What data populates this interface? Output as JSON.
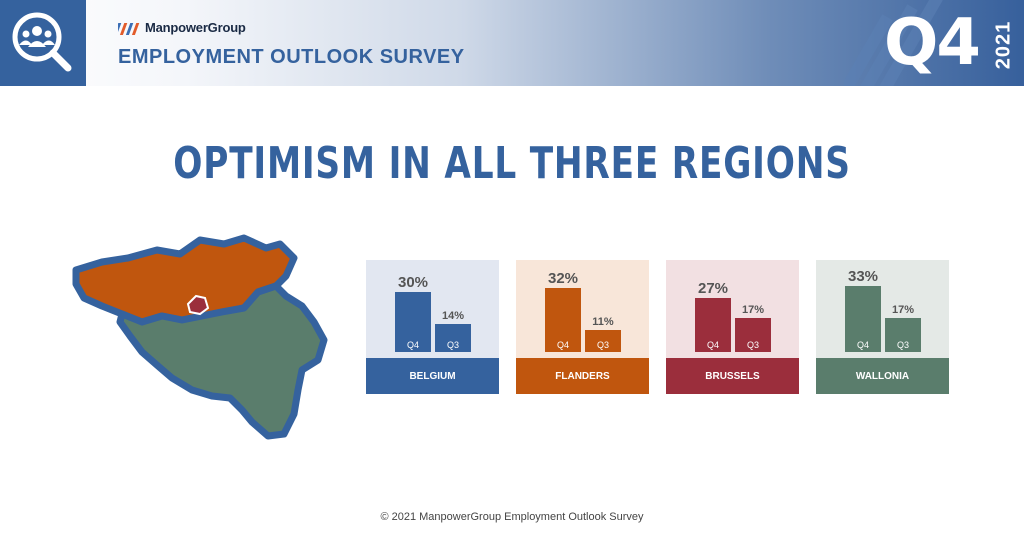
{
  "header": {
    "brand": "ManpowerGroup",
    "survey_title": "EMPLOYMENT OUTLOOK SURVEY",
    "quarter": "Q4",
    "year": "2021",
    "icon": "people-search-icon"
  },
  "main_title": "OPTIMISM IN ALL THREE REGIONS",
  "map": {
    "flanders_color": "#c0560e",
    "wallonia_color": "#5a7d6c",
    "brussels_color": "#9b2e3c",
    "border_color": "#35629e"
  },
  "chart_data": [
    {
      "type": "bar",
      "region": "BELGIUM",
      "categories": [
        "Q4",
        "Q3"
      ],
      "values": [
        30,
        14
      ],
      "value_labels": [
        "30%",
        "14%"
      ],
      "color": "#35629e",
      "background": "#e2e7f1"
    },
    {
      "type": "bar",
      "region": "FLANDERS",
      "categories": [
        "Q4",
        "Q3"
      ],
      "values": [
        32,
        11
      ],
      "value_labels": [
        "32%",
        "11%"
      ],
      "color": "#c0560e",
      "background": "#f8e6d9"
    },
    {
      "type": "bar",
      "region": "BRUSSELS",
      "categories": [
        "Q4",
        "Q3"
      ],
      "values": [
        27,
        17
      ],
      "value_labels": [
        "27%",
        "17%"
      ],
      "color": "#9b2e3c",
      "background": "#f2e0e2"
    },
    {
      "type": "bar",
      "region": "WALLONIA",
      "categories": [
        "Q4",
        "Q3"
      ],
      "values": [
        33,
        17
      ],
      "value_labels": [
        "33%",
        "17%"
      ],
      "color": "#5a7d6c",
      "background": "#e4e9e6"
    }
  ],
  "footer": "© 2021 ManpowerGroup Employment Outlook Survey"
}
